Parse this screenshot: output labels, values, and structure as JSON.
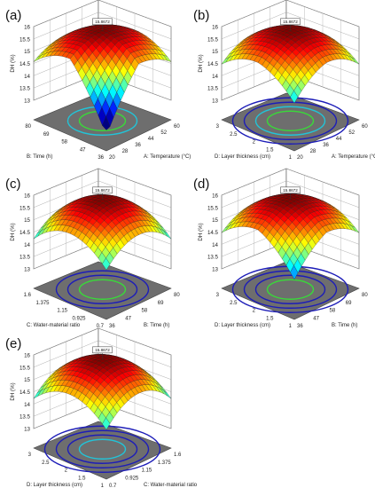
{
  "chart_data": [
    {
      "panel": "(a)",
      "type": "surface",
      "zlabel": "DH (%)",
      "zticks": [
        "13",
        "13.5",
        "14",
        "14.5",
        "15",
        "15.5",
        "16"
      ],
      "zlim": [
        13,
        16
      ],
      "peak_label": "15.8672",
      "left_axis": {
        "label": "B: Time (h)",
        "ticks": [
          "36",
          "47",
          "58",
          "69",
          "80"
        ]
      },
      "right_axis": {
        "label": "A: Temperature (°C)",
        "ticks": [
          "20",
          "28",
          "36",
          "44",
          "52",
          "60"
        ]
      },
      "floor_contours": [
        "cyan",
        "green"
      ],
      "surface_color": "blue-to-red by height"
    },
    {
      "panel": "(b)",
      "type": "surface",
      "zlabel": "DH (%)",
      "zticks": [
        "13",
        "13.5",
        "14",
        "14.5",
        "15",
        "15.5",
        "16"
      ],
      "zlim": [
        13,
        16
      ],
      "peak_label": "15.8672",
      "left_axis": {
        "label": "D: Layer thickness (cm)",
        "ticks": [
          "1",
          "1.5",
          "2",
          "2.5",
          "3"
        ]
      },
      "right_axis": {
        "label": "A: Temperature (°C)",
        "ticks": [
          "20",
          "28",
          "36",
          "44",
          "52",
          "60"
        ]
      },
      "floor_contours": [
        "blue",
        "blue",
        "cyan",
        "green"
      ]
    },
    {
      "panel": "(c)",
      "type": "surface",
      "zlabel": "DH (%)",
      "zticks": [
        "13",
        "13.5",
        "14",
        "14.5",
        "15",
        "15.5",
        "16"
      ],
      "zlim": [
        13,
        16
      ],
      "peak_label": "15.8672",
      "left_axis": {
        "label": "C: Water-material ratio",
        "ticks": [
          "0.7",
          "0.925",
          "1.15",
          "1.375",
          "1.6"
        ]
      },
      "right_axis": {
        "label": "B: Time (h)",
        "ticks": [
          "36",
          "47",
          "58",
          "69",
          "80"
        ]
      },
      "floor_contours": [
        "blue",
        "blue",
        "green"
      ]
    },
    {
      "panel": "(d)",
      "type": "surface",
      "zlabel": "DH (%)",
      "zticks": [
        "13",
        "13.5",
        "14",
        "14.5",
        "15",
        "15.5",
        "16"
      ],
      "zlim": [
        13,
        16
      ],
      "peak_label": "15.8672",
      "left_axis": {
        "label": "D: Layer thickness (cm)",
        "ticks": [
          "1",
          "1.5",
          "2",
          "2.5",
          "3"
        ]
      },
      "right_axis": {
        "label": "B: Time (h)",
        "ticks": [
          "36",
          "47",
          "58",
          "69",
          "80"
        ]
      },
      "floor_contours": [
        "blue",
        "blue",
        "blue",
        "green"
      ]
    },
    {
      "panel": "(e)",
      "type": "surface",
      "zlabel": "DH (%)",
      "zticks": [
        "13",
        "13.5",
        "14",
        "14.5",
        "15",
        "15.5",
        "16"
      ],
      "zlim": [
        13,
        16
      ],
      "peak_label": "15.8672",
      "left_axis": {
        "label": "D: Layer thickness (cm)",
        "ticks": [
          "1",
          "1.5",
          "2",
          "2.5",
          "3"
        ]
      },
      "right_axis": {
        "label": "C: Water-material ratio",
        "ticks": [
          "0.7",
          "0.925",
          "1.15",
          "1.375",
          "1.6"
        ]
      },
      "floor_contours": [
        "blue",
        "blue",
        "blue",
        "cyan"
      ]
    }
  ]
}
